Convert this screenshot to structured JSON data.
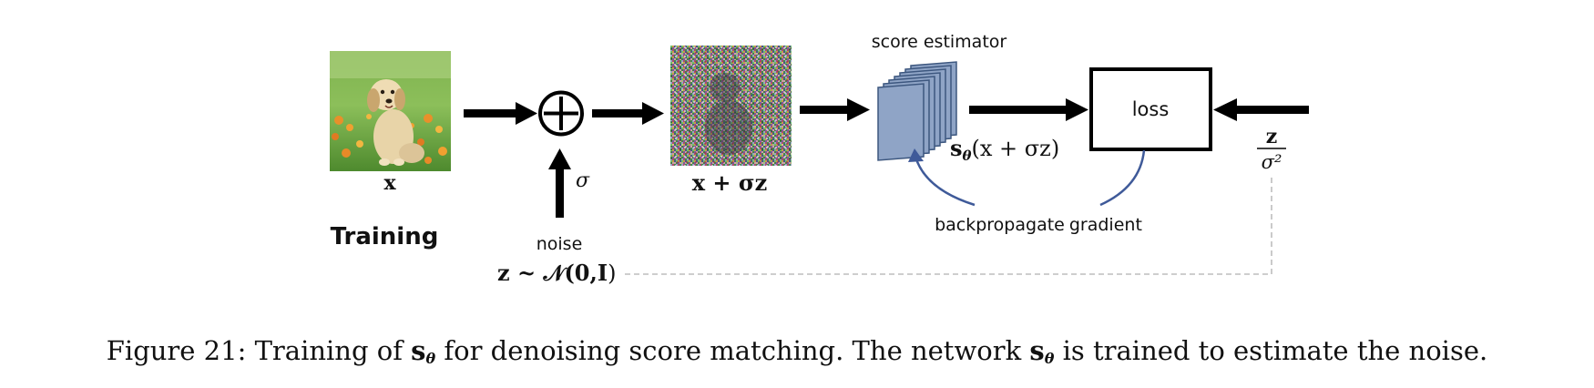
{
  "labels": {
    "input_var": "x",
    "training": "Training",
    "sigma": "σ",
    "noise": "noise",
    "noise_dist_lhs": "z ~ 𝒩(0,",
    "noise_dist_I": "I",
    "noise_dist_close": ")",
    "noisy_lhs": "x + σ",
    "noisy_z": "z",
    "score_estimator": "score estimator",
    "estimator_output_s": "s",
    "estimator_output_theta": "θ",
    "estimator_output_arg": "(x + σz)",
    "loss": "loss",
    "target_num": "z",
    "target_den": "σ²",
    "backprop_1": "backpropagate",
    "backprop_2": "gradient"
  },
  "caption": {
    "prefix": "Figure 21: Training of ",
    "s1": "s",
    "sub1": "θ",
    "middle": " for denoising score matching. The network ",
    "s2": "s",
    "sub2": "θ",
    "suffix": " is trained to estimate the noise."
  },
  "colors": {
    "arrow": "#000000",
    "backprop_curve": "#3f5a99",
    "estimator_fill": "#8fa4c6",
    "estimator_stroke": "#3d577f",
    "dashed": "#bdbdbd"
  }
}
